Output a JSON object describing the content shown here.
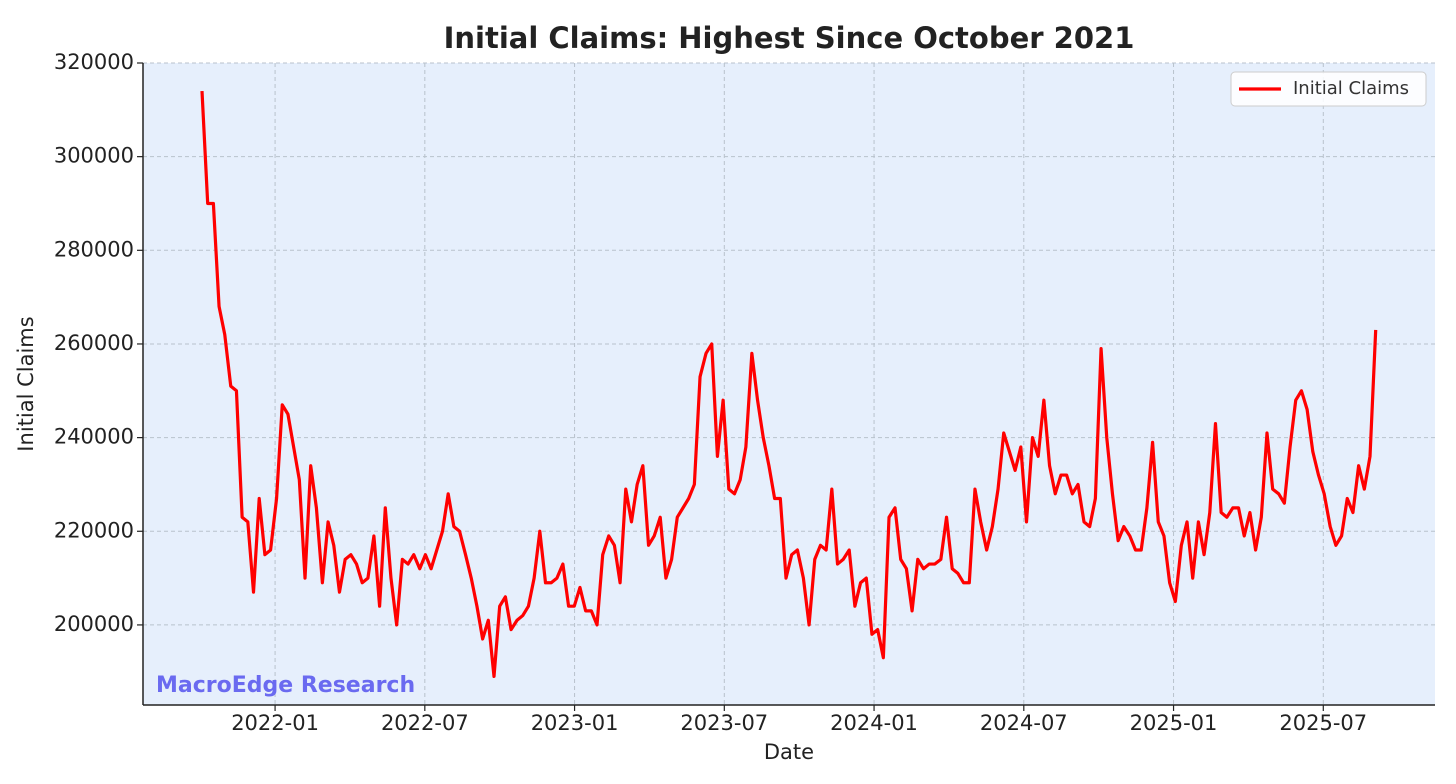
{
  "chart_data": {
    "type": "line",
    "title": "Initial Claims: Highest Since October 2021",
    "xlabel": "Date",
    "ylabel": "Initial Claims",
    "watermark": "MacroEdge Research",
    "legend": "upper right",
    "grid": true,
    "xlim": [
      2021.559,
      2025.873
    ],
    "xticks": [
      {
        "value": 2022,
        "label": "2022-01"
      },
      {
        "value": 2022.5,
        "label": "2022-07"
      },
      {
        "value": 2023,
        "label": "2023-01"
      },
      {
        "value": 2023.5,
        "label": "2023-07"
      },
      {
        "value": 2024,
        "label": "2024-01"
      },
      {
        "value": 2024.5,
        "label": "2024-07"
      },
      {
        "value": 2025,
        "label": "2025-01"
      },
      {
        "value": 2025.5,
        "label": "2025-07"
      }
    ],
    "ylim": [
      182900,
      320000
    ],
    "yticks": [
      200000,
      220000,
      240000,
      260000,
      280000,
      300000,
      320000
    ],
    "x": [
      2021.756,
      2021.775,
      2021.794,
      2021.813,
      2021.832,
      2021.852,
      2021.871,
      2021.89,
      2021.909,
      2021.928,
      2021.947,
      2021.966,
      2021.985,
      2022.005,
      2022.024,
      2022.043,
      2022.062,
      2022.081,
      2022.1,
      2022.119,
      2022.138,
      2022.158,
      2022.177,
      2022.196,
      2022.215,
      2022.234,
      2022.253,
      2022.272,
      2022.291,
      2022.31,
      2022.33,
      2022.349,
      2022.368,
      2022.387,
      2022.406,
      2022.425,
      2022.444,
      2022.463,
      2022.483,
      2022.502,
      2022.521,
      2022.54,
      2022.559,
      2022.578,
      2022.597,
      2022.616,
      2022.636,
      2022.655,
      2022.674,
      2022.693,
      2022.712,
      2022.731,
      2022.75,
      2022.769,
      2022.788,
      2022.808,
      2022.827,
      2022.846,
      2022.865,
      2022.884,
      2022.903,
      2022.922,
      2022.941,
      2022.961,
      2022.98,
      2022.999,
      2023.018,
      2023.037,
      2023.056,
      2023.075,
      2023.094,
      2023.114,
      2023.133,
      2023.152,
      2023.171,
      2023.19,
      2023.209,
      2023.228,
      2023.247,
      2023.266,
      2023.286,
      2023.305,
      2023.324,
      2023.343,
      2023.362,
      2023.381,
      2023.4,
      2023.419,
      2023.439,
      2023.458,
      2023.477,
      2023.496,
      2023.515,
      2023.534,
      2023.553,
      2023.572,
      2023.592,
      2023.611,
      2023.63,
      2023.649,
      2023.668,
      2023.687,
      2023.706,
      2023.725,
      2023.744,
      2023.764,
      2023.783,
      2023.802,
      2023.821,
      2023.84,
      2023.859,
      2023.878,
      2023.897,
      2023.917,
      2023.936,
      2023.955,
      2023.974,
      2023.993,
      2024.012,
      2024.031,
      2024.05,
      2024.07,
      2024.089,
      2024.108,
      2024.127,
      2024.146,
      2024.165,
      2024.184,
      2024.203,
      2024.223,
      2024.242,
      2024.261,
      2024.28,
      2024.299,
      2024.318,
      2024.337,
      2024.356,
      2024.376,
      2024.395,
      2024.414,
      2024.433,
      2024.452,
      2024.471,
      2024.49,
      2024.509,
      2024.529,
      2024.548,
      2024.567,
      2024.586,
      2024.605,
      2024.624,
      2024.643,
      2024.662,
      2024.681,
      2024.701,
      2024.72,
      2024.739,
      2024.758,
      2024.777,
      2024.796,
      2024.815,
      2024.834,
      2024.854,
      2024.873,
      2024.892,
      2024.911,
      2024.93,
      2024.949,
      2024.968,
      2024.987,
      2025.006,
      2025.026,
      2025.045,
      2025.064,
      2025.083,
      2025.102,
      2025.121,
      2025.14,
      2025.159,
      2025.178,
      2025.198,
      2025.217,
      2025.236,
      2025.255,
      2025.274,
      2025.293,
      2025.312,
      2025.331,
      2025.351,
      2025.37,
      2025.389,
      2025.408,
      2025.427,
      2025.446,
      2025.465,
      2025.484,
      2025.503,
      2025.523,
      2025.542,
      2025.561,
      2025.58,
      2025.599,
      2025.618,
      2025.637,
      2025.656,
      2025.675
    ],
    "series": [
      {
        "name": "Initial Claims",
        "color": "#ff0000",
        "values": [
          314000,
          290000,
          290000,
          268000,
          262000,
          251000,
          250000,
          223000,
          222000,
          207000,
          227000,
          215000,
          216000,
          227000,
          247000,
          245000,
          238000,
          231000,
          210000,
          234000,
          225000,
          209000,
          222000,
          217000,
          207000,
          214000,
          215000,
          213000,
          209000,
          210000,
          219000,
          204000,
          225000,
          210000,
          200000,
          214000,
          213000,
          215000,
          212000,
          215000,
          212000,
          216000,
          220000,
          228000,
          221000,
          220000,
          215000,
          210000,
          204000,
          197000,
          201000,
          189000,
          204000,
          206000,
          199000,
          201000,
          202000,
          204000,
          210000,
          220000,
          209000,
          209000,
          210000,
          213000,
          204000,
          204000,
          208000,
          203000,
          203000,
          200000,
          215000,
          219000,
          217000,
          209000,
          229000,
          222000,
          230000,
          234000,
          217000,
          219000,
          223000,
          210000,
          214000,
          223000,
          225000,
          227000,
          230000,
          253000,
          258000,
          260000,
          236000,
          248000,
          229000,
          228000,
          231000,
          238000,
          258000,
          248000,
          240000,
          234000,
          227000,
          227000,
          210000,
          215000,
          216000,
          210000,
          200000,
          214000,
          217000,
          216000,
          229000,
          213000,
          214000,
          216000,
          204000,
          209000,
          210000,
          198000,
          199000,
          193000,
          223000,
          225000,
          214000,
          212000,
          203000,
          214000,
          212000,
          213000,
          213000,
          214000,
          223000,
          212000,
          211000,
          209000,
          209000,
          229000,
          222000,
          216000,
          221000,
          229000,
          241000,
          237000,
          233000,
          238000,
          222000,
          240000,
          236000,
          248000,
          234000,
          228000,
          232000,
          232000,
          228000,
          230000,
          222000,
          221000,
          227000,
          259000,
          240000,
          228000,
          218000,
          221000,
          219000,
          216000,
          216000,
          225000,
          239000,
          222000,
          219000,
          209000,
          205000,
          217000,
          222000,
          210000,
          222000,
          215000,
          224000,
          243000,
          224000,
          223000,
          225000,
          225000,
          219000,
          224000,
          216000,
          223000,
          241000,
          229000,
          228000,
          226000,
          238000,
          248000,
          250000,
          246000,
          237000,
          232000,
          228000,
          221000,
          217000,
          219000,
          227000,
          224000,
          234000,
          229000,
          236000,
          263000
        ]
      }
    ]
  }
}
